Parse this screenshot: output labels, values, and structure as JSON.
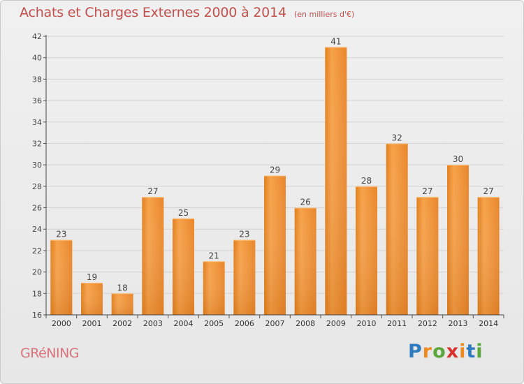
{
  "chart_data": {
    "type": "bar",
    "title": "Achats et Charges Externes 2000 à 2014",
    "unit": "(en milliers d'€)",
    "categories": [
      "2000",
      "2001",
      "2002",
      "2003",
      "2004",
      "2005",
      "2006",
      "2007",
      "2008",
      "2009",
      "2010",
      "2011",
      "2012",
      "2013",
      "2014"
    ],
    "values": [
      23,
      19,
      18,
      27,
      25,
      21,
      23,
      29,
      26,
      41,
      28,
      32,
      27,
      30,
      27
    ],
    "ylim": [
      16,
      42
    ],
    "yticks": [
      16,
      18,
      20,
      22,
      24,
      26,
      28,
      30,
      32,
      34,
      36,
      38,
      40,
      42
    ],
    "grid": true,
    "bar_color": "#f29c3f",
    "xlabel": "",
    "ylabel": ""
  },
  "footer": {
    "place": "GRéNING",
    "logo": "Proxiti"
  },
  "colors": {
    "title": "#c0504d",
    "place": "#d9727b"
  }
}
